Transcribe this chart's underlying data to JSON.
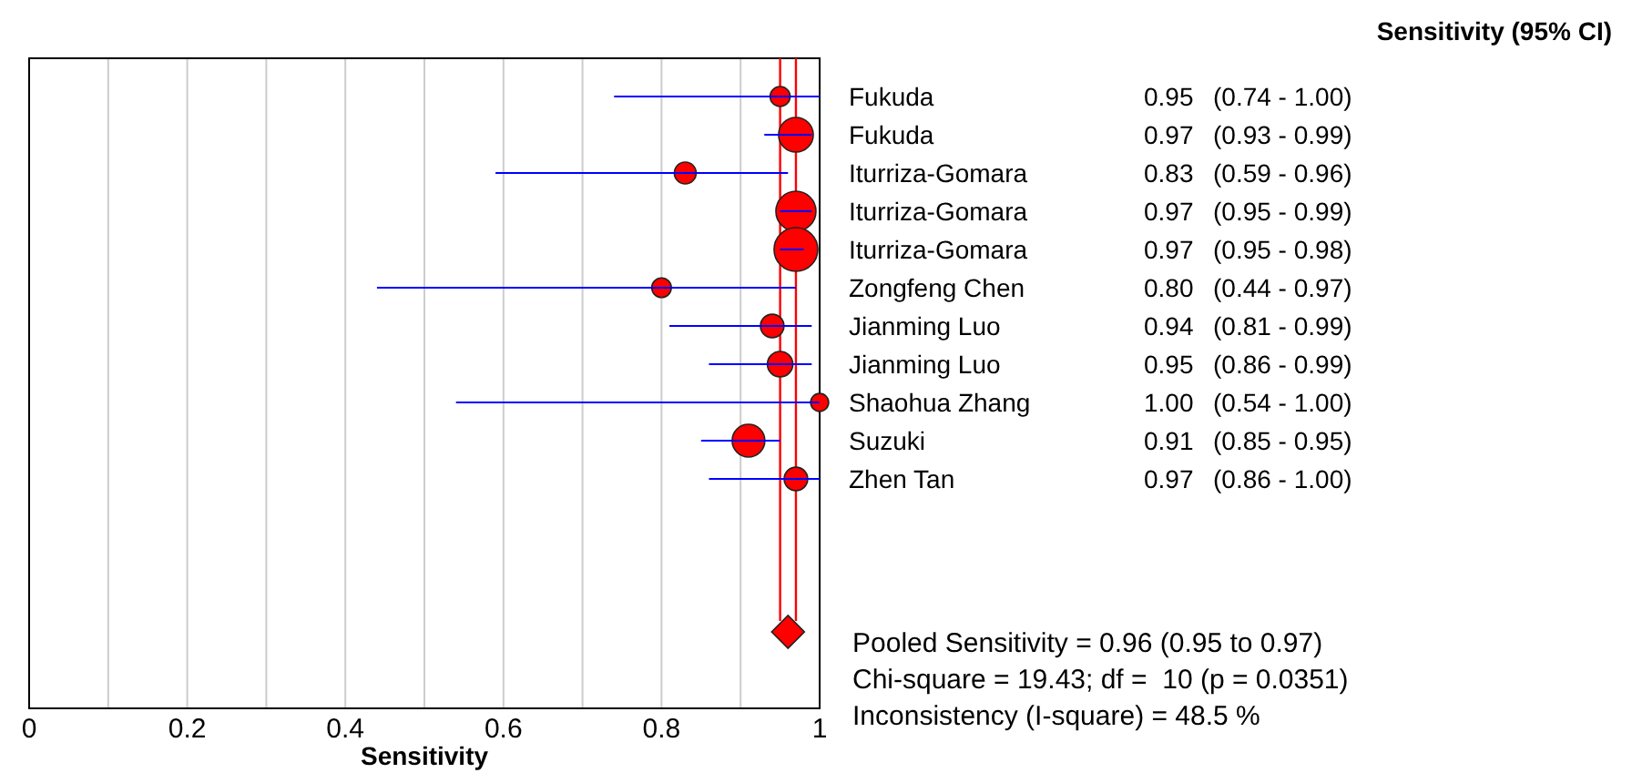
{
  "chart_data": {
    "type": "bubble",
    "orientation": "horizontal",
    "xlabel": "Sensitivity",
    "categories": [
      "Fukuda",
      "Fukuda",
      "Iturriza-Gomara",
      "Iturriza-Gomara",
      "Iturriza-Gomara",
      "Zongfeng Chen",
      "Jianming Luo",
      "Jianming Luo",
      "Shaohua Zhang",
      "Suzuki",
      "Zhen Tan",
      null,
      null,
      null,
      null
    ],
    "series": [
      {
        "color": "#ff0000",
        "values": [
          0.95,
          0.97,
          0.83,
          0.97,
          0.97,
          0.8,
          0.94,
          0.95,
          1.0,
          0.91,
          0.97,
          null,
          null,
          null,
          null
        ],
        "sizes": [
          0.21,
          0.63,
          0.25,
          0.84,
          1,
          0.2,
          0.29,
          0.34,
          0.17,
          0.56,
          0.29,
          null,
          null,
          null,
          null
        ],
        "errors": [
          [
            0.74,
            1.0
          ],
          [
            0.93,
            0.99
          ],
          [
            0.59,
            0.96
          ],
          [
            0.95,
            0.99
          ],
          [
            0.95,
            0.98
          ],
          [
            0.44,
            0.97
          ],
          [
            0.81,
            0.99
          ],
          [
            0.86,
            0.99
          ],
          [
            0.54,
            1.0
          ],
          [
            0.85,
            0.95
          ],
          [
            0.86,
            1.0
          ],
          null,
          null,
          null,
          null
        ],
        "value_labels": [
          "0.95 (0.74 - 1.00)",
          "0.97 (0.93 - 0.99)",
          "0.83 (0.59 - 0.96)",
          "0.97 (0.95 - 0.99)",
          "0.97 (0.95 - 0.98)",
          "0.80 (0.44 - 0.97)",
          "0.94 (0.81 - 0.99)",
          "0.95 (0.86 - 0.99)",
          "1.00 (0.54 - 1.00)",
          "0.91 (0.85 - 0.95)",
          "0.97 (0.86 - 1.00)",
          null,
          null,
          null,
          null
        ]
      },
      {
        "type": "scatter",
        "marker": "diamond",
        "color": "#ff0000",
        "values": [
          null,
          null,
          null,
          null,
          null,
          null,
          null,
          null,
          null,
          null,
          null,
          null,
          null,
          null,
          0.96
        ]
      }
    ],
    "xlim": [
      0,
      1
    ],
    "xticks": [
      0,
      {
        "value": 0.1,
        "label": null
      },
      0.2,
      {
        "value": 0.3,
        "label": null
      },
      0.4,
      {
        "value": 0.5,
        "label": null
      },
      0.6,
      {
        "value": 0.7,
        "label": null
      },
      0.8,
      {
        "value": 0.9,
        "label": null
      },
      1
    ],
    "grid": "x",
    "ref_lines": [
      {
        "axis": "x",
        "value": 0.95,
        "color": "#ff0000"
      },
      {
        "axis": "x",
        "value": 0.97,
        "color": "#ff0000"
      }
    ],
    "annotations": [
      "Sensitivity (95% CI)",
      "Pooled Sensitivity = 0.96 (0.95 to 0.97)",
      "Chi-square = 19.43; df =  10 (p = 0.0351)",
      "Inconsistency (I-square) = 48.5 %"
    ]
  }
}
